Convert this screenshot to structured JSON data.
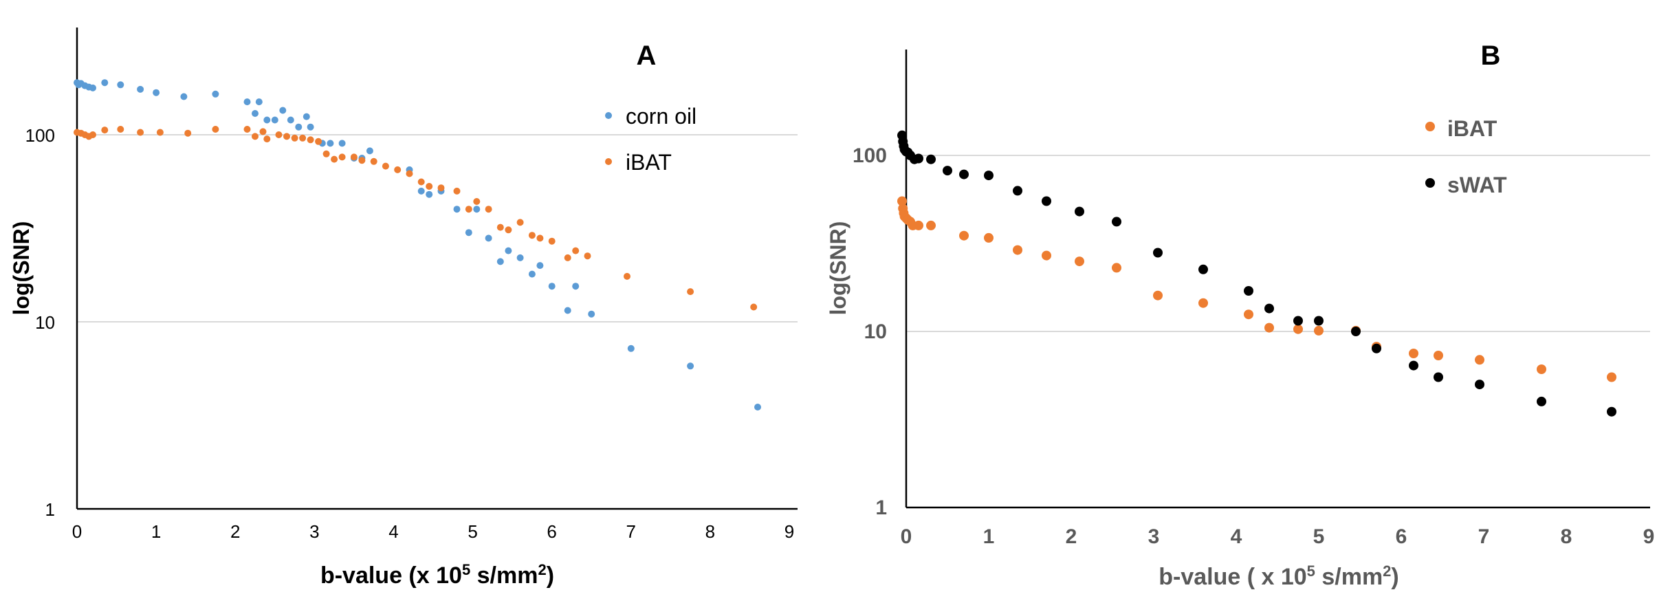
{
  "chart_data": [
    {
      "type": "scatter",
      "panel_label": "A",
      "ylabel": "log(SNR)",
      "xlabel_prefix": "b-value (x 10",
      "xlabel_sup1": "5",
      "xlabel_mid": " s/mm",
      "xlabel_sup2": "2",
      "xlabel_suffix": ")",
      "xlim": [
        0,
        9
      ],
      "ylim": [
        1,
        400
      ],
      "y_scale": "log",
      "x_ticks": [
        "0",
        "1",
        "2",
        "3",
        "4",
        "5",
        "6",
        "7",
        "8",
        "9"
      ],
      "y_ticks": [
        "1",
        "10",
        "100"
      ],
      "grid": true,
      "legend_position": "top-right",
      "series": [
        {
          "name": "corn oil",
          "color": "#5B9BD5",
          "points": [
            [
              0.0,
              190
            ],
            [
              0.02,
              185
            ],
            [
              0.05,
              188
            ],
            [
              0.1,
              183
            ],
            [
              0.15,
              180
            ],
            [
              0.2,
              178
            ],
            [
              0.35,
              190
            ],
            [
              0.55,
              185
            ],
            [
              0.8,
              175
            ],
            [
              1.0,
              168
            ],
            [
              1.35,
              160
            ],
            [
              1.75,
              165
            ],
            [
              2.15,
              150
            ],
            [
              2.25,
              130
            ],
            [
              2.3,
              150
            ],
            [
              2.4,
              120
            ],
            [
              2.5,
              120
            ],
            [
              2.6,
              135
            ],
            [
              2.7,
              120
            ],
            [
              2.8,
              110
            ],
            [
              2.9,
              125
            ],
            [
              2.95,
              110
            ],
            [
              3.1,
              90
            ],
            [
              3.2,
              90
            ],
            [
              3.35,
              90
            ],
            [
              3.5,
              75
            ],
            [
              3.6,
              75
            ],
            [
              3.7,
              82
            ],
            [
              4.2,
              65
            ],
            [
              4.35,
              50
            ],
            [
              4.45,
              48
            ],
            [
              4.6,
              50
            ],
            [
              4.8,
              40
            ],
            [
              4.95,
              30
            ],
            [
              5.05,
              40
            ],
            [
              5.2,
              28
            ],
            [
              5.35,
              21
            ],
            [
              5.45,
              24
            ],
            [
              5.6,
              22
            ],
            [
              5.75,
              18
            ],
            [
              5.85,
              20
            ],
            [
              6.0,
              15.5
            ],
            [
              6.2,
              11.5
            ],
            [
              6.3,
              15.5
            ],
            [
              6.5,
              11
            ],
            [
              7.0,
              7.2
            ],
            [
              7.75,
              5.8
            ],
            [
              8.6,
              3.5
            ]
          ]
        },
        {
          "name": "iBAT",
          "color": "#ED7D31",
          "points": [
            [
              0.0,
              103
            ],
            [
              0.05,
              102
            ],
            [
              0.1,
              100
            ],
            [
              0.15,
              98
            ],
            [
              0.2,
              100
            ],
            [
              0.35,
              106
            ],
            [
              0.55,
              107
            ],
            [
              0.8,
              103
            ],
            [
              1.05,
              103
            ],
            [
              1.4,
              102
            ],
            [
              1.75,
              107
            ],
            [
              2.15,
              107
            ],
            [
              2.25,
              98
            ],
            [
              2.35,
              104
            ],
            [
              2.4,
              95
            ],
            [
              2.55,
              100
            ],
            [
              2.65,
              98
            ],
            [
              2.75,
              96
            ],
            [
              2.85,
              96
            ],
            [
              2.95,
              94
            ],
            [
              3.05,
              92
            ],
            [
              3.15,
              79
            ],
            [
              3.25,
              74
            ],
            [
              3.35,
              76
            ],
            [
              3.5,
              76
            ],
            [
              3.6,
              73
            ],
            [
              3.75,
              72
            ],
            [
              3.9,
              68
            ],
            [
              4.05,
              65
            ],
            [
              4.2,
              62
            ],
            [
              4.35,
              56
            ],
            [
              4.45,
              53
            ],
            [
              4.6,
              52
            ],
            [
              4.8,
              50
            ],
            [
              4.95,
              40
            ],
            [
              5.05,
              44
            ],
            [
              5.2,
              40
            ],
            [
              5.35,
              32
            ],
            [
              5.45,
              31
            ],
            [
              5.6,
              34
            ],
            [
              5.75,
              29
            ],
            [
              5.85,
              28
            ],
            [
              6.0,
              27
            ],
            [
              6.2,
              22
            ],
            [
              6.3,
              24
            ],
            [
              6.45,
              22.5
            ],
            [
              6.95,
              17.5
            ],
            [
              7.75,
              14.5
            ],
            [
              8.55,
              12
            ]
          ]
        }
      ]
    },
    {
      "type": "scatter",
      "panel_label": "B",
      "ylabel": "log(SNR)",
      "xlabel_prefix": "b-value ( x 10",
      "xlabel_sup1": "5",
      "xlabel_mid": " s/mm",
      "xlabel_sup2": "2",
      "xlabel_suffix": ")",
      "xlim": [
        0,
        9
      ],
      "ylim": [
        1,
        400
      ],
      "y_scale": "log",
      "x_ticks": [
        "0",
        "1",
        "2",
        "3",
        "4",
        "5",
        "6",
        "7",
        "8",
        "9"
      ],
      "y_ticks": [
        "1",
        "10",
        "100"
      ],
      "grid": true,
      "legend_position": "top-right",
      "series": [
        {
          "name": "iBAT",
          "color": "#ED7D31",
          "points": [
            [
              -0.05,
              55
            ],
            [
              -0.04,
              50
            ],
            [
              -0.03,
              47
            ],
            [
              -0.02,
              45
            ],
            [
              0.0,
              44
            ],
            [
              0.02,
              43
            ],
            [
              0.05,
              42
            ],
            [
              0.08,
              40
            ],
            [
              0.15,
              40
            ],
            [
              0.3,
              40
            ],
            [
              0.7,
              35
            ],
            [
              1.0,
              34
            ],
            [
              1.35,
              29
            ],
            [
              1.7,
              27
            ],
            [
              2.1,
              25
            ],
            [
              2.55,
              23
            ],
            [
              3.05,
              16
            ],
            [
              3.6,
              14.5
            ],
            [
              4.15,
              12.5
            ],
            [
              4.4,
              10.5
            ],
            [
              4.75,
              10.3
            ],
            [
              5.0,
              10.1
            ],
            [
              5.45,
              10.1
            ],
            [
              5.7,
              8.2
            ],
            [
              6.15,
              7.5
            ],
            [
              6.45,
              7.3
            ],
            [
              6.95,
              6.9
            ],
            [
              7.7,
              6.1
            ],
            [
              8.55,
              5.5
            ]
          ]
        },
        {
          "name": "sWAT",
          "color": "#000000",
          "points": [
            [
              -0.05,
              130
            ],
            [
              -0.04,
              120
            ],
            [
              -0.03,
              113
            ],
            [
              -0.02,
              108
            ],
            [
              0.0,
              105
            ],
            [
              0.02,
              104
            ],
            [
              0.05,
              100
            ],
            [
              0.1,
              95
            ],
            [
              0.15,
              96
            ],
            [
              0.3,
              95
            ],
            [
              0.5,
              82
            ],
            [
              0.7,
              78
            ],
            [
              1.0,
              77
            ],
            [
              1.35,
              63
            ],
            [
              1.7,
              55
            ],
            [
              2.1,
              48
            ],
            [
              2.55,
              42
            ],
            [
              3.05,
              28
            ],
            [
              3.6,
              22.5
            ],
            [
              4.15,
              17
            ],
            [
              4.4,
              13.5
            ],
            [
              4.75,
              11.5
            ],
            [
              5.0,
              11.5
            ],
            [
              5.45,
              10
            ],
            [
              5.7,
              8
            ],
            [
              6.15,
              6.4
            ],
            [
              6.45,
              5.5
            ],
            [
              6.95,
              5
            ],
            [
              7.7,
              4
            ],
            [
              8.55,
              3.5
            ]
          ]
        }
      ]
    }
  ]
}
